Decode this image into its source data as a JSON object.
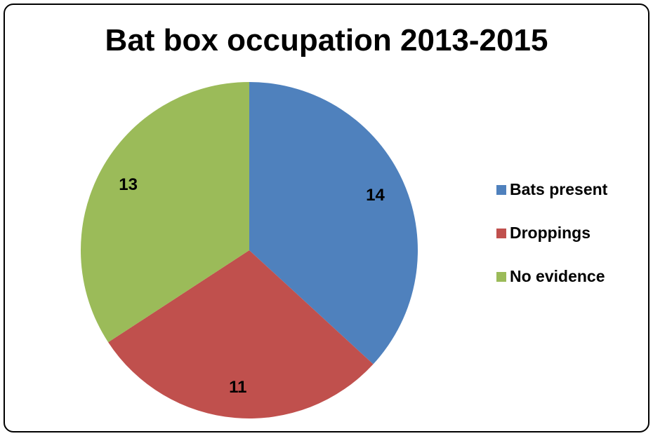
{
  "chart_data": {
    "type": "pie",
    "title": "Bat box occupation 2013-2015",
    "categories": [
      "Bats present",
      "Droppings",
      "No evidence"
    ],
    "values": [
      14,
      11,
      13
    ],
    "colors": [
      "#4F81BD",
      "#C0504D",
      "#9BBB59"
    ],
    "data_labels": [
      "14",
      "11",
      "13"
    ],
    "legend_position": "right",
    "start_angle": "12 o'clock",
    "direction": "clockwise"
  }
}
